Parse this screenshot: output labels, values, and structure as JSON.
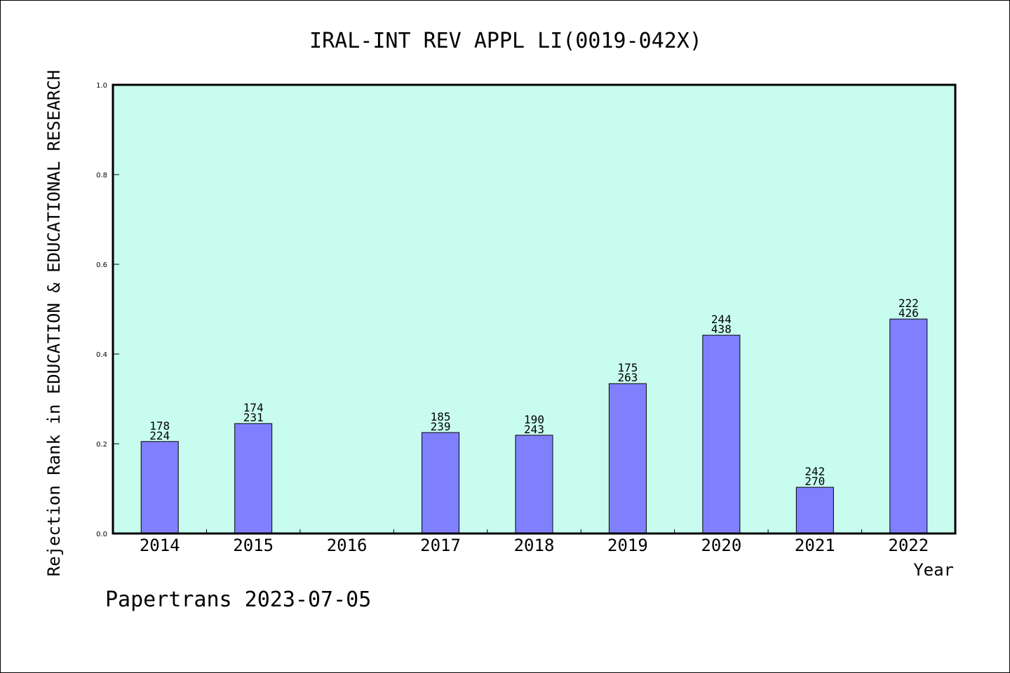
{
  "colors": {
    "plot_background": "#c8fcee",
    "bar_fill": "#8080ff",
    "bar_stroke": "#000000",
    "axis": "#000000"
  },
  "chart_data": {
    "type": "bar",
    "title": "IRAL-INT REV APPL LI(0019-042X)",
    "xlabel": "Year",
    "ylabel": "Rejection Rank in EDUCATION & EDUCATIONAL RESEARCH",
    "ylim": [
      0,
      1.0
    ],
    "yticks": [
      "0.0",
      "0.2",
      "0.4",
      "0.6",
      "0.8",
      "1.0"
    ],
    "grid": false,
    "categories": [
      "2014",
      "2015",
      "2016",
      "2017",
      "2018",
      "2019",
      "2020",
      "2021",
      "2022"
    ],
    "values": [
      0.205,
      0.245,
      null,
      0.225,
      0.219,
      0.334,
      0.442,
      0.103,
      0.478
    ],
    "labels_top": [
      "178",
      "174",
      "",
      "185",
      "190",
      "175",
      "244",
      "242",
      "222"
    ],
    "labels_bottom": [
      "224",
      "231",
      "",
      "239",
      "243",
      "263",
      "438",
      "270",
      "426"
    ]
  },
  "footer": "Papertrans 2023-07-05"
}
